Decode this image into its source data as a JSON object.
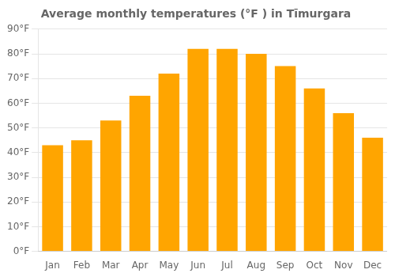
{
  "chart_data": {
    "type": "bar",
    "title": "Average monthly temperatures (°F ) in Tīmurgara",
    "categories": [
      "Jan",
      "Feb",
      "Mar",
      "Apr",
      "May",
      "Jun",
      "Jul",
      "Aug",
      "Sep",
      "Oct",
      "Nov",
      "Dec"
    ],
    "values": [
      43,
      45,
      53,
      63,
      72,
      82,
      82,
      80,
      75,
      66,
      56,
      46
    ],
    "color": "#FFA500",
    "ylim": [
      0,
      90
    ],
    "yticks": [
      {
        "value": 0,
        "label": "0°F"
      },
      {
        "value": 10,
        "label": "10°F"
      },
      {
        "value": 20,
        "label": "20°F"
      },
      {
        "value": 30,
        "label": "30°F"
      },
      {
        "value": 40,
        "label": "40°F"
      },
      {
        "value": 50,
        "label": "50°F"
      },
      {
        "value": 60,
        "label": "60°F"
      },
      {
        "value": 70,
        "label": "70°F"
      },
      {
        "value": 80,
        "label": "80°F"
      },
      {
        "value": 90,
        "label": "90°F"
      }
    ],
    "grid": true
  }
}
